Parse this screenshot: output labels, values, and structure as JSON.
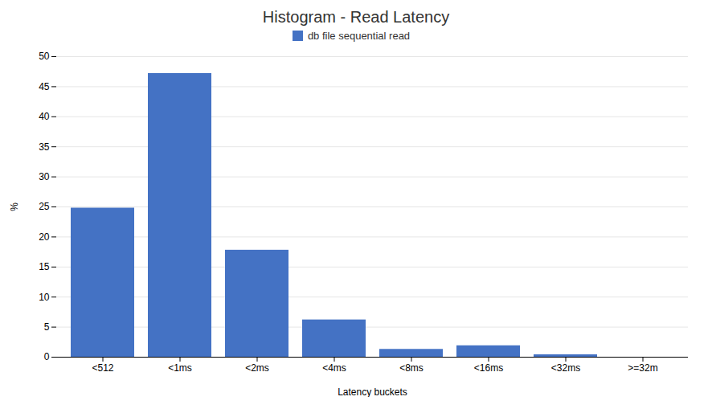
{
  "chart_data": {
    "type": "bar",
    "title": "Histogram - Read Latency",
    "xlabel": "Latency buckets",
    "ylabel": "%",
    "categories": [
      "<512",
      "<1ms",
      "<2ms",
      "<4ms",
      "<8ms",
      "<16ms",
      "<32ms",
      ">=32m"
    ],
    "series": [
      {
        "name": "db file sequential read",
        "color": "#4472C4",
        "values": [
          24.8,
          47.2,
          17.8,
          6.2,
          1.3,
          1.9,
          0.4,
          0.0
        ]
      }
    ],
    "ylim": [
      0,
      50
    ],
    "yticks": [
      0,
      5,
      10,
      15,
      20,
      25,
      30,
      35,
      40,
      45,
      50
    ],
    "grid": true,
    "legend": "top"
  }
}
